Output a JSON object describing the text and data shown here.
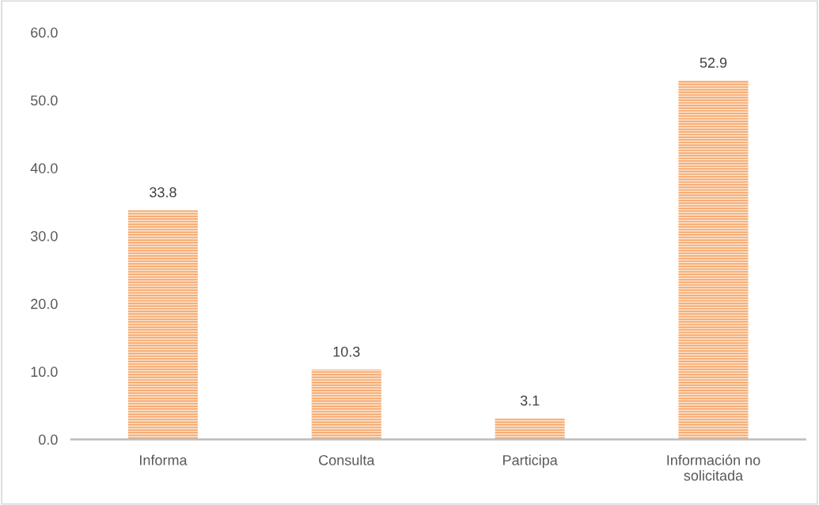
{
  "chart_data": {
    "type": "bar",
    "categories": [
      "Informa",
      "Consulta",
      "Participa",
      "Información no\nsolicitada"
    ],
    "values": [
      33.8,
      10.3,
      3.1,
      52.9
    ],
    "color": "#f5a263",
    "ylim": [
      0,
      60
    ],
    "yticks": [
      {
        "value": 0,
        "label": "0.0"
      },
      {
        "value": 10,
        "label": "10.0"
      },
      {
        "value": 20,
        "label": "20.0"
      },
      {
        "value": 30,
        "label": "30.0"
      },
      {
        "value": 40,
        "label": "40.0"
      },
      {
        "value": 50,
        "label": "50.0"
      },
      {
        "value": 60,
        "label": "60.0"
      }
    ],
    "data_labels": true,
    "grid": false,
    "legend": false
  }
}
